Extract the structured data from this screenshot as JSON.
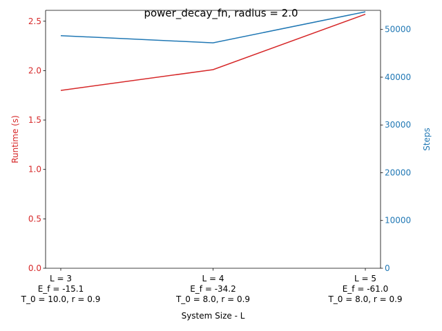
{
  "chart_data": {
    "type": "line",
    "title": "power_decay_fn, radius = 2.0",
    "xlabel": "System Size - L",
    "categories": [
      [
        "L = 3",
        "E_f = -15.1",
        "T_0 = 10.0, r = 0.9"
      ],
      [
        "L = 4",
        "E_f = -34.2",
        "T_0 = 8.0, r = 0.9"
      ],
      [
        "L = 5",
        "E_f = -61.0",
        "T_0 = 8.0, r = 0.9"
      ]
    ],
    "left_axis": {
      "label": "Runtime (s)",
      "color": "#d62728",
      "ylim": [
        0,
        2.61
      ],
      "ticks": [
        "0.0",
        "0.5",
        "1.0",
        "1.5",
        "2.0",
        "2.5"
      ]
    },
    "right_axis": {
      "label": "Steps",
      "color": "#1f77b4",
      "ylim": [
        0,
        54000
      ],
      "ticks": [
        "0",
        "10000",
        "20000",
        "30000",
        "40000",
        "50000"
      ]
    },
    "series": [
      {
        "axis": "left",
        "color": "#d62728",
        "values": [
          1.8,
          2.01,
          2.57
        ]
      },
      {
        "axis": "right",
        "color": "#1f77b4",
        "values": [
          48700,
          47200,
          53700
        ]
      }
    ],
    "grid": false
  }
}
